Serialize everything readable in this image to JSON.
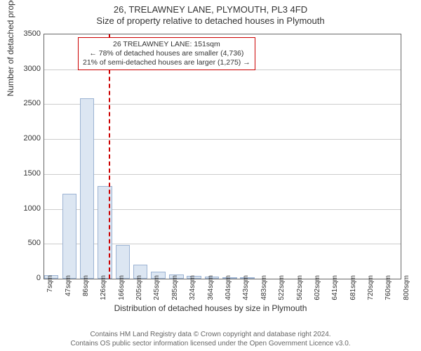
{
  "title_line1": "26, TRELAWNEY LANE, PLYMOUTH, PL3 4FD",
  "title_line2": "Size of property relative to detached houses in Plymouth",
  "y_axis_label": "Number of detached properties",
  "x_axis_label": "Distribution of detached houses by size in Plymouth",
  "footer_line1": "Contains HM Land Registry data © Crown copyright and database right 2024.",
  "footer_line2": "Contains OS public sector information licensed under the Open Government Licence v3.0.",
  "annotation": {
    "line1": "26 TRELAWNEY LANE: 151sqm",
    "line2": "← 78% of detached houses are smaller (4,736)",
    "line3": "21% of semi-detached houses are larger (1,275) →"
  },
  "chart": {
    "type": "histogram",
    "background_color": "#ffffff",
    "grid_color": "#cccccc",
    "border_color": "#666666",
    "bar_fill": "#dce6f2",
    "bar_stroke": "#9cb3d3",
    "marker_color": "#cc0000",
    "ylim": [
      0,
      3500
    ],
    "ytick_step": 500,
    "y_ticks": [
      0,
      500,
      1000,
      1500,
      2000,
      2500,
      3000,
      3500
    ],
    "xlim": [
      7,
      800
    ],
    "x_ticks": [
      7,
      47,
      86,
      126,
      166,
      205,
      245,
      285,
      324,
      364,
      404,
      443,
      483,
      522,
      562,
      602,
      641,
      681,
      720,
      760,
      800
    ],
    "x_tick_suffix": "sqm",
    "marker_x": 151,
    "bar_width_value": 32,
    "bars": [
      {
        "x": 7,
        "y": 50
      },
      {
        "x": 47,
        "y": 1220
      },
      {
        "x": 86,
        "y": 2580
      },
      {
        "x": 126,
        "y": 1330
      },
      {
        "x": 166,
        "y": 480
      },
      {
        "x": 205,
        "y": 200
      },
      {
        "x": 245,
        "y": 100
      },
      {
        "x": 285,
        "y": 60
      },
      {
        "x": 324,
        "y": 40
      },
      {
        "x": 364,
        "y": 35
      },
      {
        "x": 404,
        "y": 25
      },
      {
        "x": 443,
        "y": 15
      }
    ],
    "title_fontsize": 13,
    "label_fontsize": 12,
    "tick_fontsize": 11,
    "annotation_fontsize": 10.5
  }
}
